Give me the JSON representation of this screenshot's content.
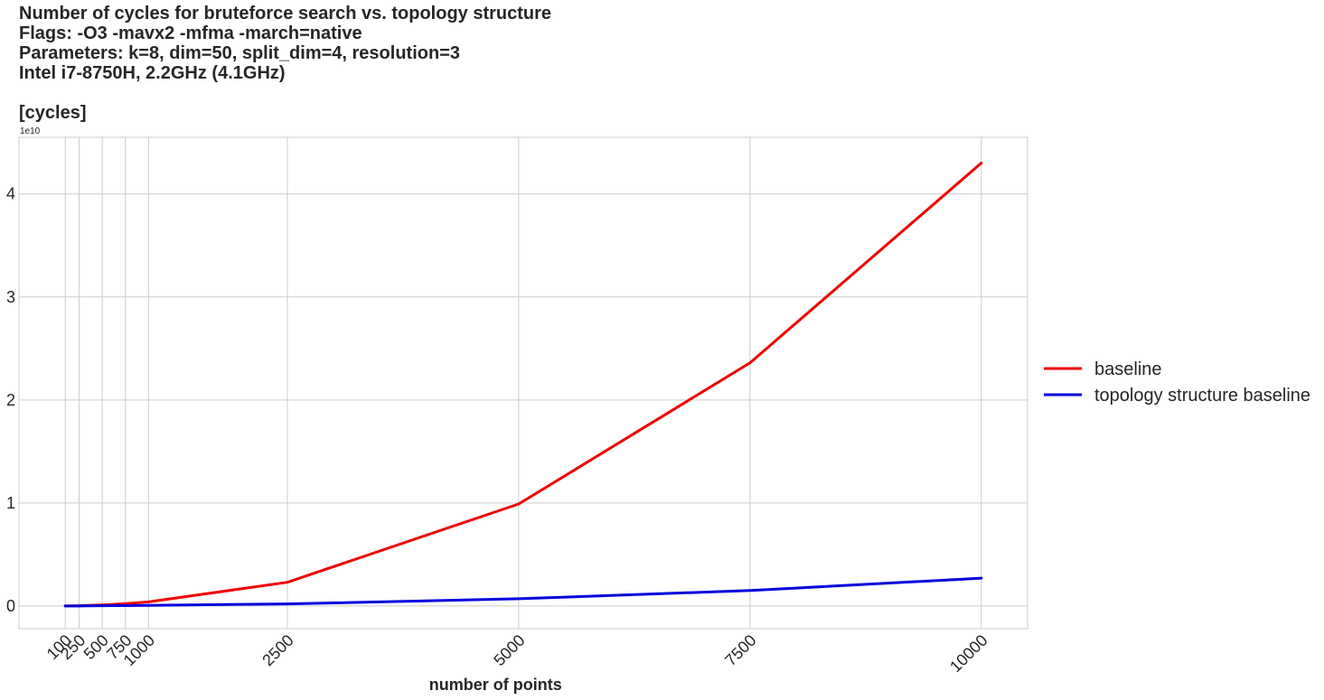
{
  "chart_data": {
    "type": "line",
    "title_lines": [
      "Number of cycles for bruteforce search vs. topology structure",
      "Flags: -O3 -mavx2 -mfma -march=native",
      "Parameters: k=8, dim=50, split_dim=4, resolution=3",
      "Intel i7-8750H, 2.2GHz (4.1GHz)"
    ],
    "ylabel": "[cycles]",
    "xlabel": "number of points",
    "y_offset_label": "1e10",
    "y_multiplier": 10000000000,
    "x": [
      100,
      250,
      500,
      750,
      1000,
      2500,
      5000,
      7500,
      10000
    ],
    "x_tick_labels": [
      "100",
      "250",
      "500",
      "750",
      "1000",
      "2500",
      "5000",
      "7500",
      "10000"
    ],
    "xlim": [
      -400,
      10500
    ],
    "ylim": [
      -0.22,
      4.55
    ],
    "y_ticks": [
      0,
      1,
      2,
      3,
      4
    ],
    "y_tick_labels": [
      "0",
      "1",
      "2",
      "3",
      "4"
    ],
    "grid": true,
    "legend_position": "right-center",
    "series": [
      {
        "name": "baseline",
        "color": "#ee0000",
        "values": [
          0.0,
          0.002,
          0.01,
          0.022,
          0.04,
          0.23,
          0.99,
          2.36,
          4.3
        ]
      },
      {
        "name": "topology structure baseline",
        "color": "#0000dd",
        "values": [
          0.0,
          0.0005,
          0.002,
          0.004,
          0.006,
          0.02,
          0.07,
          0.15,
          0.27
        ]
      }
    ]
  }
}
